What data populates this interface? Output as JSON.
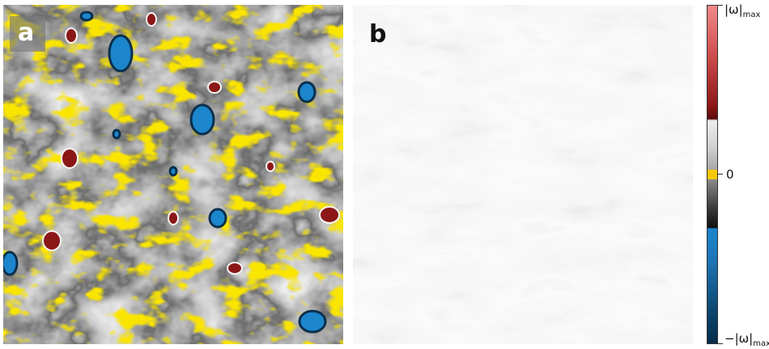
{
  "panels": {
    "a": {
      "label": "a"
    },
    "b": {
      "label": "b"
    }
  },
  "colorbar": {
    "max_label": "|ω|",
    "max_sub": "max",
    "zero_label": "0",
    "min_label": "−|ω|",
    "min_sub": "max"
  },
  "colors": {
    "positive_vorticity": "#8b1717",
    "negative_vorticity": "#1c86cc",
    "zero_contour": "#f5c800",
    "panel_b_background": "#ececec"
  }
}
